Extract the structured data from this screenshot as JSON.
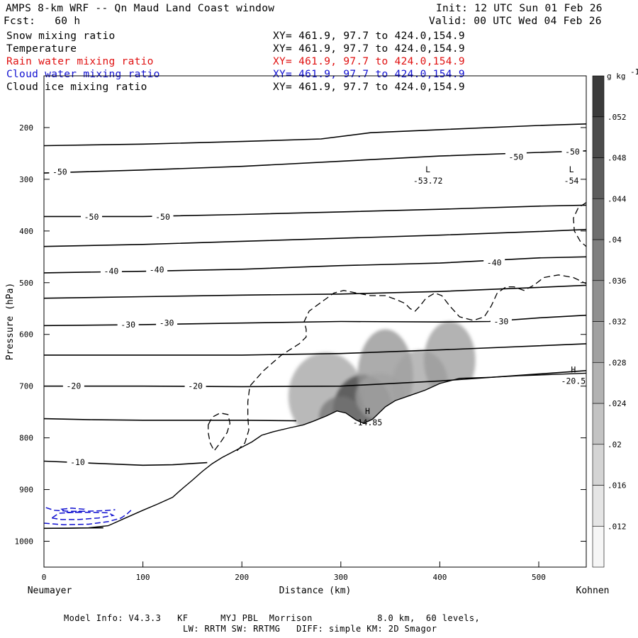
{
  "header": {
    "title": "AMPS 8-km WRF -- Qn Maud Land Coast window",
    "init": "Init: 12 UTC Sun 01 Feb 26",
    "forecast": "Fcst:   60 h",
    "valid": "Valid: 00 UTC Wed 04 Feb 26"
  },
  "legend_rows": [
    {
      "name": "Snow mixing ratio",
      "xy": "XY= 461.9, 97.7 to 424.0,154.9",
      "color": "#000000"
    },
    {
      "name": "Temperature",
      "xy": "XY= 461.9, 97.7 to 424.0,154.9",
      "color": "#000000"
    },
    {
      "name": "Rain water mixing ratio",
      "xy": "XY= 461.9, 97.7 to 424.0,154.9",
      "color": "#e01010"
    },
    {
      "name": "Cloud water mixing ratio",
      "xy": "XY= 461.9, 97.7 to 424.0,154.9",
      "color": "#1010d0"
    },
    {
      "name": "Cloud ice mixing ratio",
      "xy": "XY= 461.9, 97.7 to 424.0,154.9",
      "color": "#000000"
    }
  ],
  "footer": {
    "line1": "Model Info: V4.3.3   KF      MYJ PBL  Morrison            8.0 km,  60 levels,",
    "line2": "LW: RRTM SW: RRTMG   DIFF: simple KM: 2D Smagor"
  },
  "chart_data": {
    "type": "cross-section contour",
    "xlabel": "Distance (km)",
    "ylabel": "Pressure (hPa)",
    "xlim": [
      0,
      548
    ],
    "ylim": [
      1050,
      100
    ],
    "x_ticks": [
      0,
      100,
      200,
      300,
      400,
      500
    ],
    "y_ticks": [
      200,
      300,
      400,
      500,
      600,
      700,
      800,
      900,
      1000
    ],
    "endpoint_left": "Neumayer",
    "endpoint_right": "Kohnen",
    "colorbar": {
      "unit": "g kg",
      "unit_exp": "-1",
      "ticks": [
        ".012",
        ".016",
        ".02",
        ".024",
        ".028",
        ".032",
        ".036",
        ".04",
        ".044",
        ".048",
        ".052"
      ],
      "levels": [
        0.008,
        0.056
      ]
    },
    "terrain": [
      [
        0,
        975
      ],
      [
        20,
        975
      ],
      [
        45,
        974
      ],
      [
        65,
        970
      ],
      [
        80,
        957
      ],
      [
        100,
        940
      ],
      [
        115,
        928
      ],
      [
        130,
        915
      ],
      [
        140,
        898
      ],
      [
        150,
        882
      ],
      [
        160,
        865
      ],
      [
        170,
        850
      ],
      [
        180,
        838
      ],
      [
        190,
        828
      ],
      [
        198,
        820
      ],
      [
        210,
        808
      ],
      [
        220,
        795
      ],
      [
        232,
        788
      ],
      [
        250,
        780
      ],
      [
        262,
        775
      ],
      [
        272,
        768
      ],
      [
        285,
        758
      ],
      [
        296,
        748
      ],
      [
        305,
        752
      ],
      [
        315,
        765
      ],
      [
        323,
        772
      ],
      [
        332,
        764
      ],
      [
        345,
        740
      ],
      [
        355,
        728
      ],
      [
        370,
        718
      ],
      [
        385,
        708
      ],
      [
        400,
        695
      ],
      [
        420,
        685
      ],
      [
        450,
        683
      ],
      [
        480,
        680
      ],
      [
        520,
        677
      ],
      [
        548,
        675
      ]
    ],
    "temperature_isotherms": [
      {
        "points": [
          [
            0,
            975
          ],
          [
            60,
            974
          ]
        ]
      },
      {
        "points": [
          [
            0,
            845
          ],
          [
            60,
            850
          ],
          [
            100,
            853
          ],
          [
            130,
            852
          ],
          [
            165,
            848
          ]
        ]
      },
      {
        "points": [
          [
            0,
            763
          ],
          [
            50,
            765
          ],
          [
            100,
            766
          ],
          [
            150,
            766
          ],
          [
            200,
            766
          ],
          [
            255,
            767
          ]
        ]
      },
      {
        "points": [
          [
            0,
            700
          ],
          [
            100,
            700
          ],
          [
            200,
            701
          ],
          [
            300,
            700
          ],
          [
            400,
            690
          ],
          [
            548,
            670
          ]
        ]
      },
      {
        "points": [
          [
            0,
            640
          ],
          [
            100,
            640
          ],
          [
            200,
            640
          ],
          [
            300,
            637
          ],
          [
            400,
            630
          ],
          [
            500,
            622
          ],
          [
            548,
            618
          ]
        ]
      },
      {
        "points": [
          [
            0,
            583
          ],
          [
            100,
            581
          ],
          [
            200,
            578
          ],
          [
            300,
            575
          ],
          [
            400,
            576
          ],
          [
            450,
            575
          ],
          [
            500,
            568
          ],
          [
            548,
            563
          ]
        ]
      },
      {
        "points": [
          [
            0,
            530
          ],
          [
            100,
            527
          ],
          [
            200,
            524
          ],
          [
            300,
            522
          ],
          [
            400,
            517
          ],
          [
            500,
            509
          ],
          [
            548,
            505
          ]
        ]
      },
      {
        "points": [
          [
            0,
            481
          ],
          [
            100,
            478
          ],
          [
            200,
            474
          ],
          [
            300,
            467
          ],
          [
            400,
            462
          ],
          [
            500,
            452
          ],
          [
            548,
            450
          ]
        ]
      },
      {
        "points": [
          [
            0,
            430
          ],
          [
            100,
            426
          ],
          [
            200,
            420
          ],
          [
            300,
            414
          ],
          [
            400,
            408
          ],
          [
            500,
            401
          ],
          [
            548,
            397
          ]
        ]
      },
      {
        "points": [
          [
            0,
            372
          ],
          [
            100,
            372
          ],
          [
            200,
            368
          ],
          [
            300,
            363
          ],
          [
            400,
            358
          ],
          [
            500,
            352
          ],
          [
            548,
            350
          ]
        ]
      },
      {
        "points": [
          [
            0,
            288
          ],
          [
            100,
            282
          ],
          [
            200,
            275
          ],
          [
            300,
            265
          ],
          [
            400,
            255
          ],
          [
            500,
            248
          ],
          [
            548,
            245
          ]
        ]
      },
      {
        "points": [
          [
            0,
            235
          ],
          [
            100,
            232
          ],
          [
            200,
            227
          ],
          [
            280,
            222
          ],
          [
            330,
            210
          ],
          [
            400,
            204
          ],
          [
            500,
            196
          ],
          [
            548,
            193
          ]
        ]
      }
    ],
    "isotherm_labels": [
      {
        "x": 16,
        "p": 286,
        "text": "-50"
      },
      {
        "x": 48,
        "p": 373,
        "text": "-50"
      },
      {
        "x": 120,
        "p": 373,
        "text": "-50"
      },
      {
        "x": 477,
        "p": 257,
        "text": "-50"
      },
      {
        "x": 534,
        "p": 247,
        "text": "-50"
      },
      {
        "x": 68,
        "p": 478,
        "text": "-40"
      },
      {
        "x": 114,
        "p": 475,
        "text": "-40"
      },
      {
        "x": 455,
        "p": 461,
        "text": "-40"
      },
      {
        "x": 85,
        "p": 581,
        "text": "-30"
      },
      {
        "x": 124,
        "p": 578,
        "text": "-30"
      },
      {
        "x": 462,
        "p": 575,
        "text": "-30"
      },
      {
        "x": 30,
        "p": 700,
        "text": "-20"
      },
      {
        "x": 153,
        "p": 700,
        "text": "-20"
      },
      {
        "x": 34,
        "p": 847,
        "text": "-10"
      }
    ],
    "extrema_labels": [
      {
        "x": 388,
        "p": 295,
        "kind": "L",
        "value": "-53.72"
      },
      {
        "x": 533,
        "p": 295,
        "kind": "L",
        "value": "-54"
      },
      {
        "x": 535,
        "p": 682,
        "kind": "H",
        "value": "-20.5"
      },
      {
        "x": 327,
        "p": 762,
        "kind": "H",
        "value": "-14.85"
      }
    ],
    "cloud_ice_contour": [
      [
        166,
        775
      ],
      [
        170,
        760
      ],
      [
        178,
        752
      ],
      [
        186,
        755
      ],
      [
        188,
        772
      ],
      [
        185,
        790
      ],
      [
        178,
        810
      ],
      [
        172,
        825
      ],
      [
        168,
        810
      ],
      [
        166,
        790
      ],
      [
        195,
        825
      ],
      [
        203,
        810
      ],
      [
        207,
        785
      ],
      [
        206,
        760
      ],
      [
        206,
        730
      ],
      [
        208,
        700
      ],
      [
        222,
        670
      ],
      [
        240,
        640
      ],
      [
        258,
        618
      ],
      [
        265,
        605
      ],
      [
        265,
        590
      ],
      [
        263,
        575
      ],
      [
        268,
        555
      ],
      [
        280,
        538
      ],
      [
        293,
        520
      ],
      [
        303,
        515
      ],
      [
        316,
        520
      ],
      [
        330,
        525
      ],
      [
        345,
        525
      ],
      [
        355,
        532
      ],
      [
        365,
        540
      ],
      [
        370,
        550
      ],
      [
        375,
        555
      ],
      [
        380,
        545
      ],
      [
        386,
        530
      ],
      [
        395,
        520
      ],
      [
        402,
        525
      ],
      [
        410,
        545
      ],
      [
        420,
        566
      ],
      [
        434,
        573
      ],
      [
        445,
        566
      ],
      [
        452,
        545
      ],
      [
        458,
        520
      ],
      [
        467,
        508
      ],
      [
        475,
        508
      ],
      [
        485,
        515
      ],
      [
        495,
        505
      ],
      [
        505,
        490
      ],
      [
        520,
        485
      ],
      [
        535,
        490
      ],
      [
        548,
        502
      ]
    ],
    "cloud_ice_contour_right": [
      [
        548,
        345
      ],
      [
        540,
        355
      ],
      [
        535,
        375
      ],
      [
        536,
        400
      ],
      [
        542,
        420
      ],
      [
        548,
        430
      ]
    ],
    "cloud_water_contours": [
      {
        "points": [
          [
            2,
            935
          ],
          [
            10,
            940
          ],
          [
            25,
            942
          ],
          [
            42,
            942
          ],
          [
            60,
            941
          ],
          [
            72,
            939
          ]
        ],
        "closed": false
      },
      {
        "points": [
          [
            8,
            955
          ],
          [
            18,
            958
          ],
          [
            35,
            958
          ],
          [
            55,
            955
          ],
          [
            70,
            950
          ],
          [
            65,
            945
          ],
          [
            50,
            944
          ],
          [
            30,
            944
          ],
          [
            15,
            946
          ]
        ],
        "closed": true
      },
      {
        "points": [
          [
            0,
            965
          ],
          [
            20,
            968
          ],
          [
            45,
            967
          ],
          [
            65,
            962
          ],
          [
            78,
            955
          ],
          [
            84,
            947
          ],
          [
            88,
            940
          ]
        ],
        "closed": false
      },
      {
        "points": [
          [
            18,
            938
          ],
          [
            28,
            936
          ],
          [
            40,
            938
          ],
          [
            34,
            944
          ],
          [
            22,
            944
          ]
        ],
        "closed": true
      }
    ],
    "snow_blobs": [
      {
        "x": 285,
        "p": 720,
        "sx": 38,
        "sy": 85,
        "v": 0.03
      },
      {
        "x": 322,
        "p": 748,
        "sx": 30,
        "sy": 70,
        "v": 0.052
      },
      {
        "x": 345,
        "p": 680,
        "sx": 28,
        "sy": 90,
        "v": 0.034
      },
      {
        "x": 380,
        "p": 695,
        "sx": 28,
        "sy": 65,
        "v": 0.03
      },
      {
        "x": 410,
        "p": 650,
        "sx": 26,
        "sy": 75,
        "v": 0.032
      },
      {
        "x": 300,
        "p": 760,
        "sx": 22,
        "sy": 40,
        "v": 0.04
      },
      {
        "x": 340,
        "p": 720,
        "sx": 25,
        "sy": 45,
        "v": 0.03
      }
    ]
  }
}
